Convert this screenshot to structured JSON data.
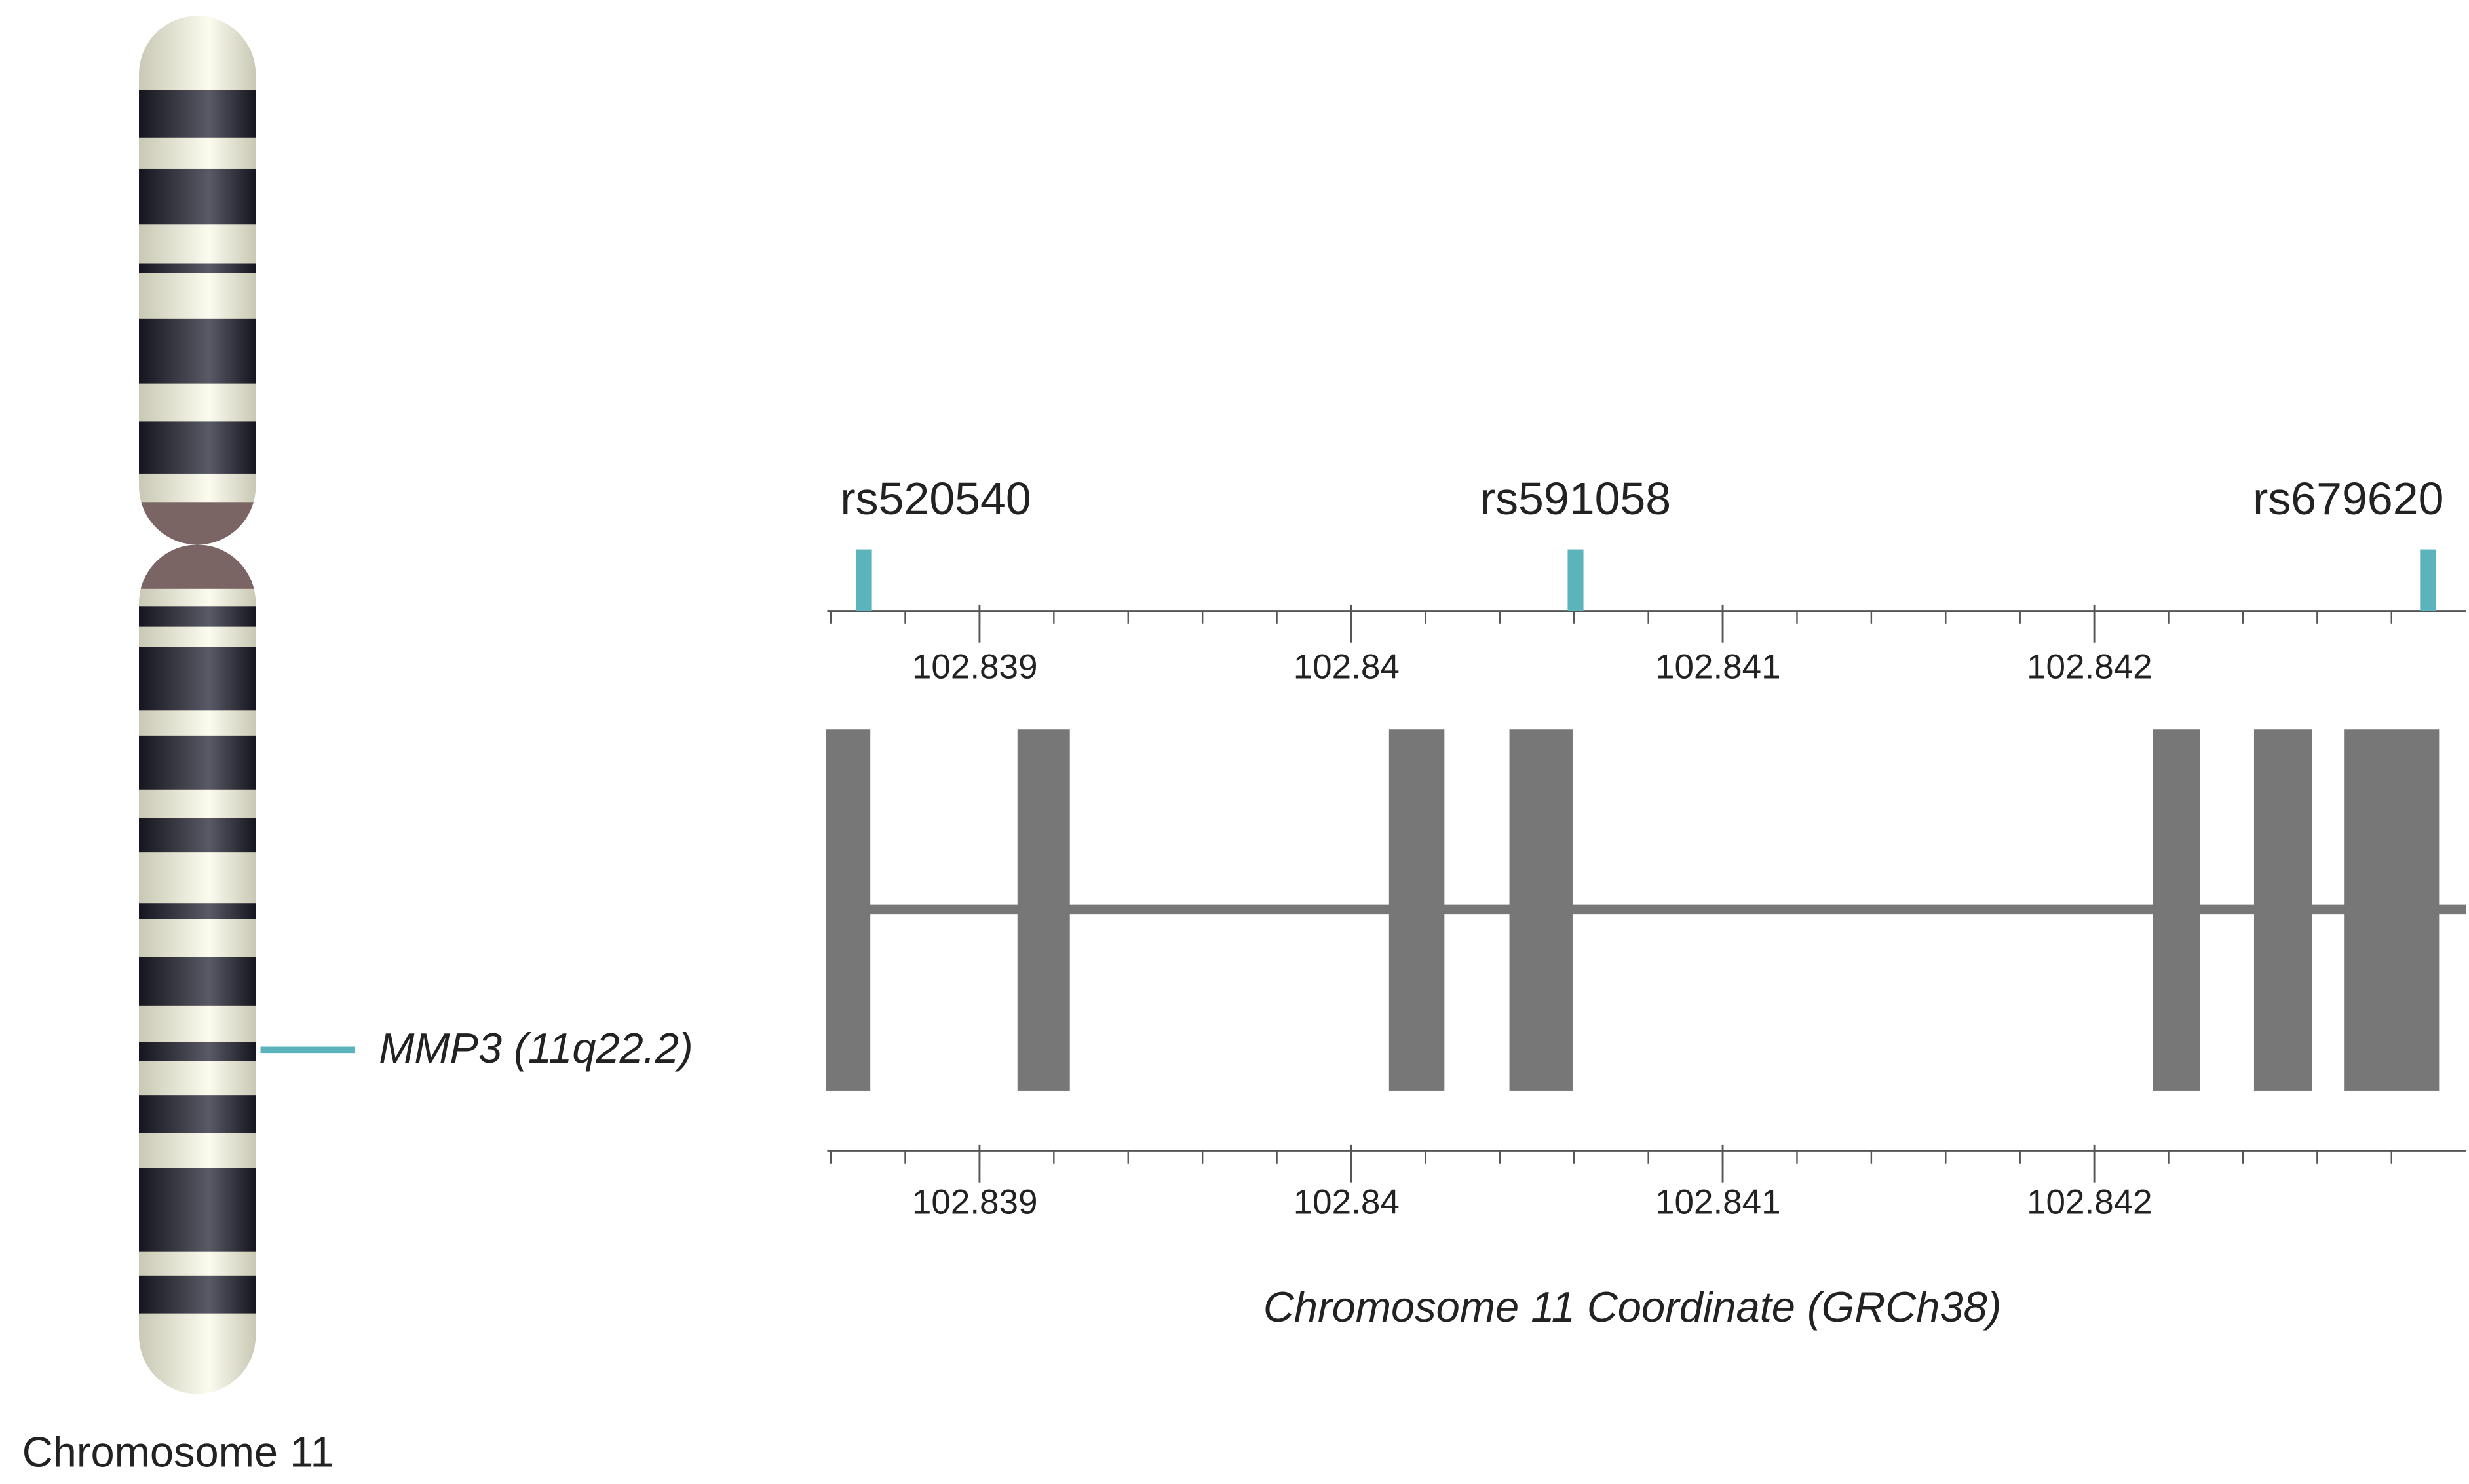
{
  "chromosome_label": "Chromosome 11",
  "gene_label": "MMP3 (11q22.2)",
  "axis": {
    "title": "Chromosome 11 Coordinate (GRCh38)",
    "xlim": [
      102.83859,
      102.843
    ],
    "xticks": [
      102.839,
      102.84,
      102.841,
      102.842
    ]
  },
  "snps": [
    {
      "name": "rs520540",
      "position": 102.838689
    },
    {
      "name": "rs591058",
      "position": 102.840604
    },
    {
      "name": "rs679620",
      "position": 102.842898
    }
  ],
  "exons": [
    [
      102.838587,
      102.838706
    ],
    [
      102.839102,
      102.839243
    ],
    [
      102.840102,
      102.840251
    ],
    [
      102.840426,
      102.840596
    ],
    [
      102.842157,
      102.842285
    ],
    [
      102.84243,
      102.842587
    ],
    [
      102.842672,
      102.842928
    ]
  ]
}
